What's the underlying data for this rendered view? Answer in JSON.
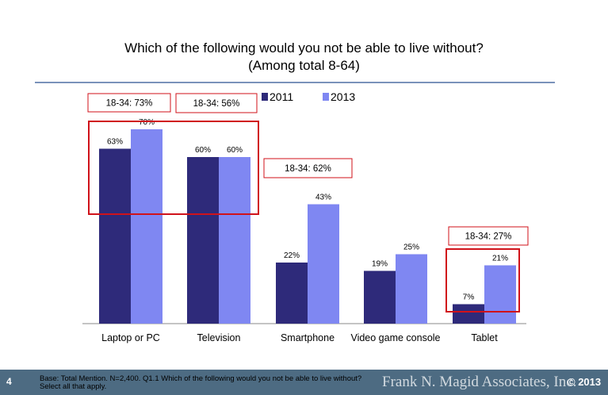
{
  "title_line1": "Which of the following would you not be able to live without?",
  "title_line2": "(Among total 8-64)",
  "chart_data": {
    "type": "bar",
    "categories": [
      "Laptop or PC",
      "Television",
      "Smartphone",
      "Video game console",
      "Tablet"
    ],
    "series": [
      {
        "name": "2011",
        "values": [
          63,
          60,
          22,
          19,
          7
        ],
        "color": "#2e2a7a"
      },
      {
        "name": "2013",
        "values": [
          70,
          60,
          43,
          25,
          21
        ],
        "color": "#7f87f2"
      }
    ],
    "value_labels": {
      "2011": [
        "63%",
        "60%",
        "22%",
        "19%",
        "7%"
      ],
      "2013": [
        "70%",
        "60%",
        "43%",
        "25%",
        "21%"
      ]
    },
    "ylim": [
      0,
      100
    ],
    "grid": false,
    "legend": "top-center",
    "annotations": [
      {
        "text": "18-34: 73%",
        "category": "Laptop or PC"
      },
      {
        "text": "18-34: 56%",
        "category": "Television"
      },
      {
        "text": "18-34: 62%",
        "category": "Smartphone"
      },
      {
        "text": "18-34: 27%",
        "category": "Tablet"
      }
    ],
    "highlight_color": "#d0121a"
  },
  "footer": {
    "page_number": "4",
    "base_note_line1": "Base: Total Mention. N=2,400. Q1.1 Which of the following would you not be able to live without?",
    "base_note_line2": "Select all that apply.",
    "brand": "Frank N. Magid Associates, Inc.",
    "copyright": "© 2013"
  },
  "colors": {
    "footer_bg": "#4d6b82",
    "divider": "#4f6fa3"
  }
}
